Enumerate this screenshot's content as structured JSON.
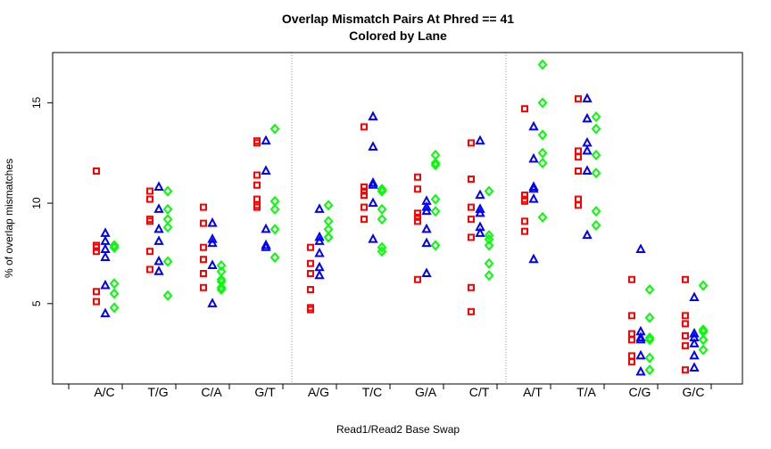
{
  "chart_data": {
    "type": "scatter",
    "title": "Overlap Mismatch Pairs At Phred == 41",
    "subtitle": "Colored by Lane",
    "xlabel": "Read1/Read2 Base Swap",
    "ylabel": "% of overlap mismatches",
    "categories": [
      "A/C",
      "T/G",
      "C/A",
      "G/T",
      "A/G",
      "T/C",
      "G/A",
      "C/T",
      "A/T",
      "T/A",
      "C/G",
      "G/C"
    ],
    "yticks": [
      5,
      10,
      15
    ],
    "ylim": [
      1.0,
      17.5
    ],
    "group_separators_after": [
      4,
      8
    ],
    "series": [
      {
        "name": "",
        "marker": "square",
        "color": "#ff0000",
        "values": [
          [
            11.6,
            7.9,
            7.8,
            7.6,
            5.6,
            5.1
          ],
          [
            10.6,
            10.2,
            9.2,
            9.1,
            7.6,
            6.7
          ],
          [
            9.8,
            9.0,
            7.8,
            7.2,
            6.5,
            5.8
          ],
          [
            13.0,
            13.1,
            11.4,
            10.9,
            10.2,
            9.9,
            9.8
          ],
          [
            7.8,
            7.0,
            6.5,
            5.7,
            4.8,
            4.7
          ],
          [
            13.8,
            10.8,
            10.6,
            10.4,
            9.8,
            9.2
          ],
          [
            11.3,
            10.7,
            9.5,
            9.3,
            9.1,
            6.2
          ],
          [
            13.0,
            11.2,
            9.8,
            9.2,
            8.3,
            5.8,
            4.6
          ],
          [
            14.7,
            10.4,
            10.2,
            10.1,
            9.1,
            8.6
          ],
          [
            15.2,
            12.6,
            12.3,
            11.6,
            10.2,
            9.9
          ],
          [
            6.2,
            4.4,
            3.5,
            3.2,
            2.4,
            2.1
          ],
          [
            6.2,
            4.4,
            4.0,
            3.4,
            2.9,
            1.7
          ]
        ]
      },
      {
        "name": "",
        "marker": "triangle",
        "color": "#0000ff",
        "values": [
          [
            8.5,
            8.1,
            7.7,
            7.3,
            5.9,
            4.5
          ],
          [
            10.8,
            9.7,
            8.7,
            8.1,
            7.1,
            6.6
          ],
          [
            9.0,
            8.2,
            8.0,
            6.9,
            5.0
          ],
          [
            13.1,
            11.6,
            8.7,
            7.9,
            7.8
          ],
          [
            9.7,
            8.3,
            8.1,
            7.5,
            6.8,
            6.4
          ],
          [
            14.3,
            12.8,
            11.0,
            10.9,
            10.0,
            8.2
          ],
          [
            10.1,
            9.8,
            9.6,
            8.7,
            8.0,
            6.5
          ],
          [
            13.1,
            10.4,
            9.7,
            9.5,
            8.8,
            8.5
          ],
          [
            13.8,
            12.2,
            10.8,
            10.7,
            10.2,
            7.2
          ],
          [
            15.2,
            14.2,
            13.0,
            12.6,
            11.6,
            8.4
          ],
          [
            7.7,
            3.6,
            3.3,
            3.2,
            2.4,
            1.6
          ],
          [
            5.3,
            3.5,
            3.3,
            3.0,
            2.4,
            1.8
          ]
        ]
      },
      {
        "name": "",
        "marker": "diamond",
        "color": "#00ff00",
        "values": [
          [
            7.9,
            7.8,
            7.8,
            6.0,
            5.5,
            4.8
          ],
          [
            10.6,
            9.7,
            9.2,
            8.8,
            7.1,
            5.4
          ],
          [
            6.9,
            6.6,
            6.2,
            6.1,
            5.8,
            5.7
          ],
          [
            13.7,
            10.1,
            9.7,
            8.7,
            7.3
          ],
          [
            9.9,
            9.1,
            8.7,
            8.3,
            8.3
          ],
          [
            10.7,
            10.6,
            9.7,
            9.2,
            7.8,
            7.6
          ],
          [
            12.4,
            12.0,
            11.9,
            10.2,
            9.6,
            7.9
          ],
          [
            10.6,
            8.4,
            8.2,
            7.9,
            7.0,
            6.4
          ],
          [
            16.9,
            15.0,
            13.4,
            12.5,
            12.0,
            9.3
          ],
          [
            14.3,
            13.7,
            12.4,
            11.5,
            9.6,
            8.9
          ],
          [
            5.7,
            4.3,
            3.3,
            3.2,
            2.3,
            1.7
          ],
          [
            5.9,
            3.7,
            3.6,
            3.2,
            3.2,
            2.7
          ]
        ]
      }
    ]
  }
}
